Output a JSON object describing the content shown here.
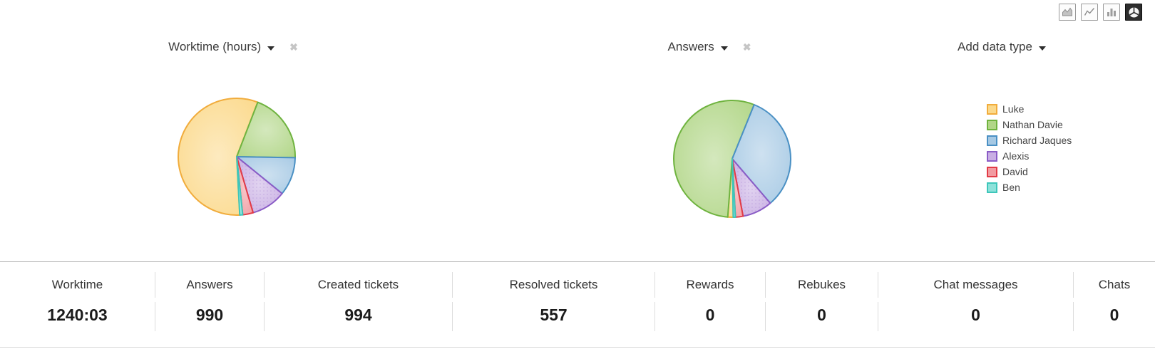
{
  "toolbar": {
    "buttons": [
      {
        "name": "area-chart",
        "active": false
      },
      {
        "name": "line-chart",
        "active": false
      },
      {
        "name": "column-chart",
        "active": false
      },
      {
        "name": "pie-chart",
        "active": true
      }
    ]
  },
  "headers": {
    "chart1": {
      "label": "Worktime (hours)"
    },
    "chart2": {
      "label": "Answers"
    },
    "add_data_type": {
      "label": "Add data type"
    },
    "close_glyph": "✖"
  },
  "legend": {
    "position": "right",
    "items": [
      {
        "label": "Luke",
        "fill": "#FBD98B",
        "stroke": "#F1AC3C"
      },
      {
        "label": "Nathan Davie",
        "fill": "#B1D687",
        "stroke": "#6FB33F"
      },
      {
        "label": "Richard Jaques",
        "fill": "#A6C9E4",
        "stroke": "#4A90C4"
      },
      {
        "label": "Alexis",
        "fill": "#C9AFE4",
        "stroke": "#8A5CC6",
        "pattern": "dots"
      },
      {
        "label": "David",
        "fill": "#F29BA1",
        "stroke": "#E23B46"
      },
      {
        "label": "Ben",
        "fill": "#8DE2DA",
        "stroke": "#3EC6BA"
      }
    ]
  },
  "chart_data": [
    {
      "type": "pie",
      "title": "Worktime (hours)",
      "total_shown": "1240:03",
      "start_angle_deg_clockwise_from_top": 177,
      "legend_entries": [
        "Luke",
        "Nathan Davie",
        "Richard Jaques",
        "Alexis",
        "David",
        "Ben"
      ],
      "slices": [
        {
          "label": "Luke",
          "percent": 56.7,
          "approx_hours": 703
        },
        {
          "label": "Nathan Davie",
          "percent": 19.4,
          "approx_hours": 241
        },
        {
          "label": "Richard Jaques",
          "percent": 10.6,
          "approx_hours": 131
        },
        {
          "label": "Alexis",
          "percent": 9.6,
          "approx_hours": 119
        },
        {
          "label": "David",
          "percent": 2.9,
          "approx_hours": 36
        },
        {
          "label": "Ben",
          "percent": 0.8,
          "approx_hours": 10
        }
      ]
    },
    {
      "type": "pie",
      "title": "Answers",
      "total_shown": 990,
      "start_angle_deg_clockwise_from_top": 179,
      "legend_entries": [
        "Luke",
        "Nathan Davie",
        "Richard Jaques",
        "Alexis",
        "David",
        "Ben"
      ],
      "slices": [
        {
          "label": "Luke",
          "percent": 1.5,
          "approx_answers": 15
        },
        {
          "label": "Nathan Davie",
          "percent": 54.9,
          "approx_answers": 543
        },
        {
          "label": "Richard Jaques",
          "percent": 32.6,
          "approx_answers": 323
        },
        {
          "label": "Alexis",
          "percent": 8.3,
          "approx_answers": 82
        },
        {
          "label": "David",
          "percent": 2.1,
          "approx_answers": 21
        },
        {
          "label": "Ben",
          "percent": 0.6,
          "approx_answers": 6
        }
      ]
    }
  ],
  "stats": {
    "items": [
      {
        "label": "Worktime",
        "value": "1240:03"
      },
      {
        "label": "Answers",
        "value": "990"
      },
      {
        "label": "Created tickets",
        "value": "994"
      },
      {
        "label": "Resolved tickets",
        "value": "557"
      },
      {
        "label": "Rewards",
        "value": "0"
      },
      {
        "label": "Rebukes",
        "value": "0"
      },
      {
        "label": "Chat messages",
        "value": "0"
      },
      {
        "label": "Chats",
        "value": "0"
      }
    ]
  }
}
